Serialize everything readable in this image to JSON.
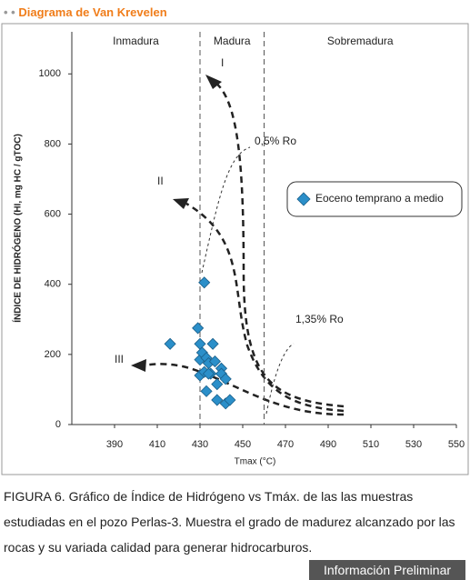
{
  "header": {
    "dots": "• •",
    "title": "Diagrama de Van Krevelen"
  },
  "chart_data": {
    "type": "scatter",
    "x_label": "Tmax (°C)",
    "y_label": "ÍNDICE DE HIDRÓGENO (HI, mg HC / gTOC)",
    "xlim": [
      370,
      550
    ],
    "ylim": [
      0,
      1120
    ],
    "xticks": [
      390,
      410,
      430,
      450,
      470,
      490,
      510,
      530,
      550
    ],
    "yticks": [
      0,
      200,
      400,
      600,
      800,
      1000
    ],
    "zones": [
      "Inmadura",
      "Madura",
      "Sobremadura"
    ],
    "zone_boundaries": [
      430,
      460
    ],
    "annotations": [
      "I",
      "II",
      "III",
      "0,5% Ro",
      "1,35% Ro"
    ],
    "series": [
      {
        "name": "Eoceno temprano a medio",
        "color": "#2b8fc9",
        "x": [
          416,
          429,
          430,
          432,
          430,
          431,
          433,
          434,
          435,
          436,
          430,
          432,
          434,
          433,
          438,
          440,
          440,
          442,
          438,
          442,
          444,
          437
        ],
        "values": [
          230,
          275,
          230,
          405,
          185,
          205,
          190,
          175,
          145,
          230,
          140,
          150,
          145,
          95,
          115,
          160,
          145,
          130,
          70,
          60,
          70,
          180
        ]
      }
    ]
  },
  "caption": "FIGURA 6. Gráfico de Índice de Hidrógeno vs Tmáx. de las las muestras estudiadas en el pozo Perlas-3. Muestra el grado de madurez alcanzado por las rocas y su variada calidad para generar hidrocarburos.",
  "footer": "Información Preliminar"
}
